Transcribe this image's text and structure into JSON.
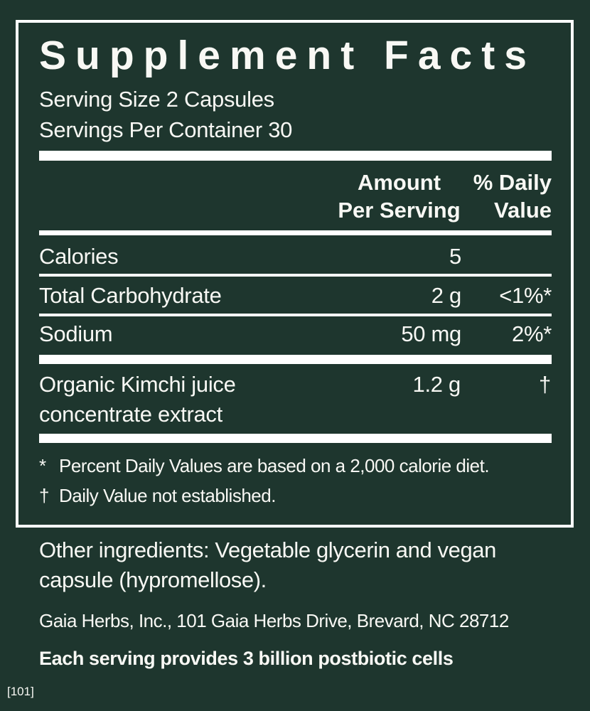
{
  "page": {
    "background_color": "#1e362e",
    "text_color": "#f8f8f4",
    "code": "[101]"
  },
  "panel": {
    "title": "Supplement Facts",
    "serving_size": "Serving Size 2 Capsules",
    "servings_per_container": "Servings Per Container 30",
    "columns": {
      "amount_line1": "Amount",
      "amount_line2": "Per Serving",
      "dv_line1": "% Daily",
      "dv_line2": "Value"
    },
    "rows": [
      {
        "name": "Calories",
        "amount": "5",
        "dv": ""
      },
      {
        "name": "Total Carbohydrate",
        "amount": "2 g",
        "dv": "<1%*"
      },
      {
        "name": "Sodium",
        "amount": "50 mg",
        "dv": "2%*"
      },
      {
        "name": "Organic Kimchi juice concentrate extract",
        "amount": "1.2 g",
        "dv": "†"
      }
    ],
    "footnotes": [
      {
        "marker": "*",
        "text": "Percent Daily Values are based on a 2,000 calorie diet."
      },
      {
        "marker": "†",
        "text": "Daily Value not established."
      }
    ]
  },
  "below": {
    "other_ingredients": "Other ingredients: Vegetable glycerin and vegan capsule (hypromellose).",
    "manufacturer": "Gaia Herbs, Inc., 101 Gaia Herbs Drive, Brevard, NC 28712",
    "claim": "Each serving provides 3 billion postbiotic cells"
  }
}
